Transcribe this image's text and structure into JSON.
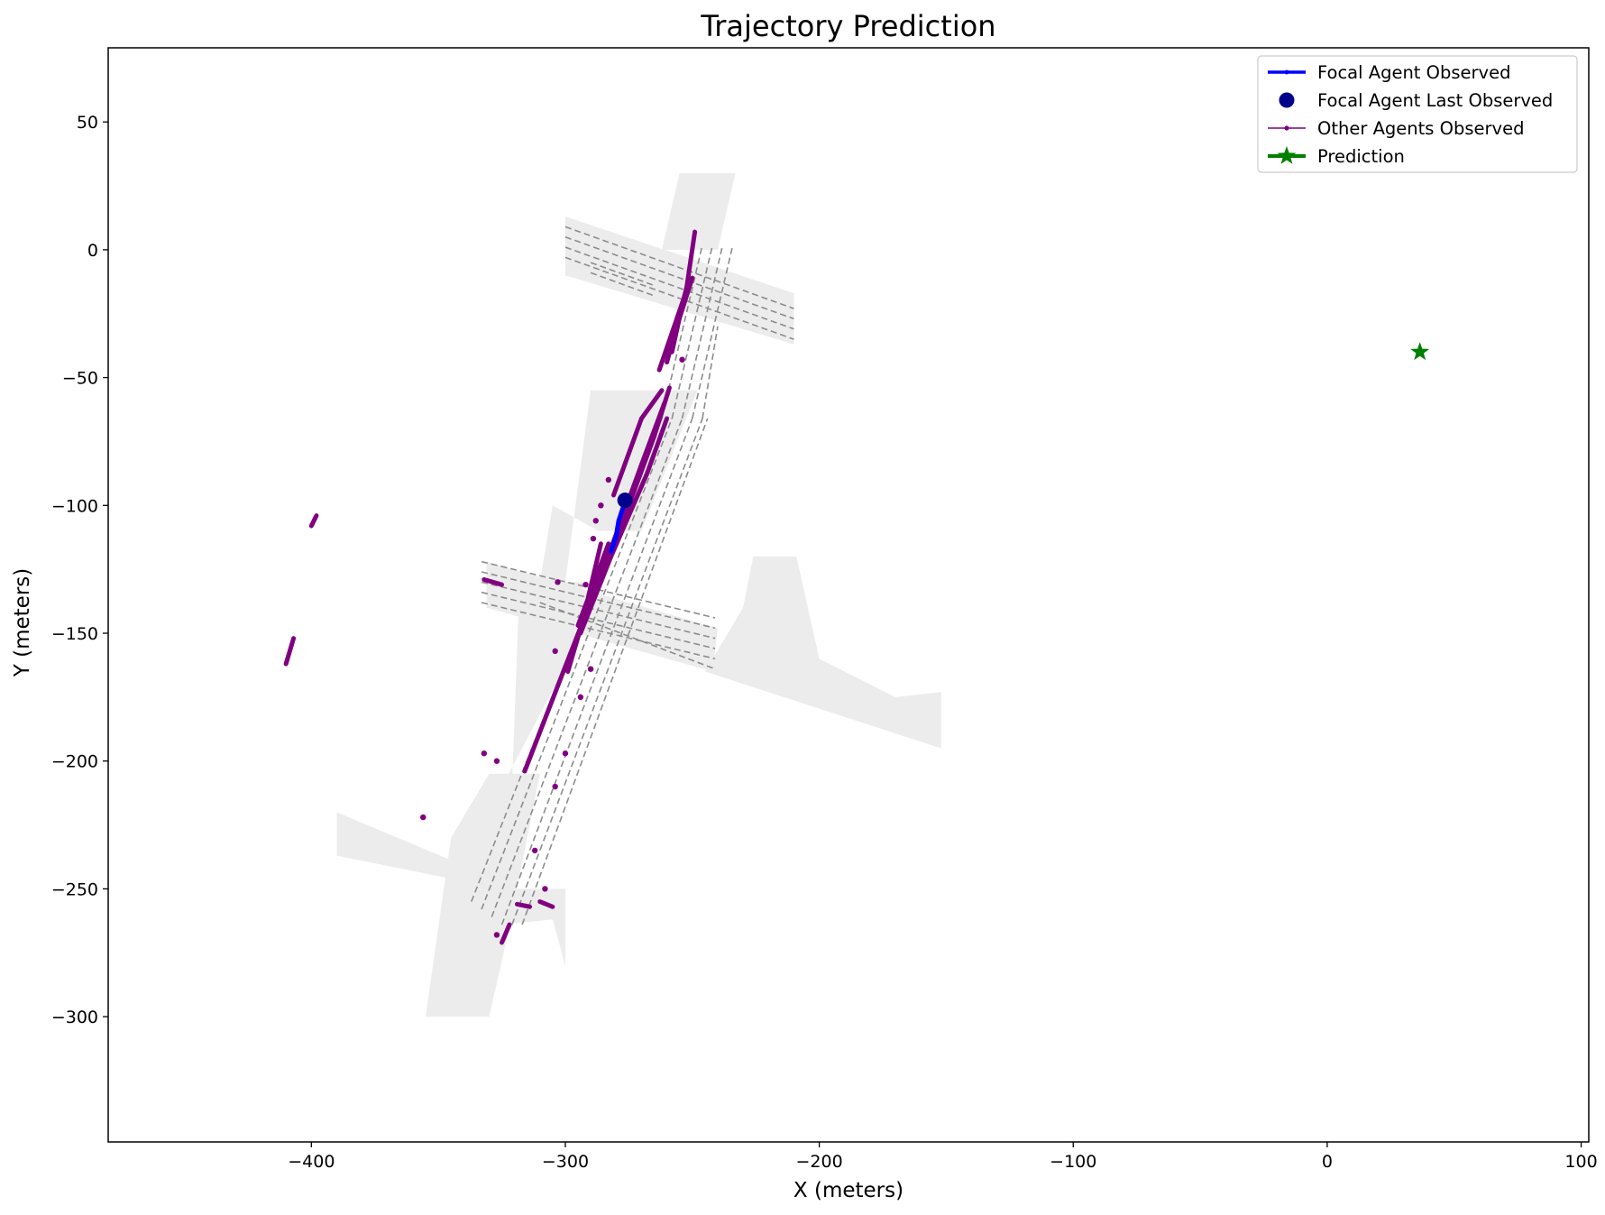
{
  "chart_data": {
    "type": "scatter",
    "title": "Trajectory Prediction",
    "xlabel": "X (meters)",
    "ylabel": "Y (meters)",
    "xlim": [
      -480,
      103
    ],
    "ylim": [
      -349,
      79
    ],
    "grid": false,
    "legend_position": "top-right",
    "x_ticks": [
      {
        "value": -400,
        "label": "−400"
      },
      {
        "value": -300,
        "label": "−300"
      },
      {
        "value": -200,
        "label": "−200"
      },
      {
        "value": -100,
        "label": "−100"
      },
      {
        "value": 0,
        "label": "0"
      },
      {
        "value": 100,
        "label": "100"
      }
    ],
    "y_ticks": [
      {
        "value": 50,
        "label": "50"
      },
      {
        "value": 0,
        "label": "0"
      },
      {
        "value": -50,
        "label": "−50"
      },
      {
        "value": -100,
        "label": "−100"
      },
      {
        "value": -150,
        "label": "−150"
      },
      {
        "value": -200,
        "label": "−200"
      },
      {
        "value": -250,
        "label": "−250"
      },
      {
        "value": -300,
        "label": "−300"
      }
    ],
    "colors": {
      "focal_observed": "#0000ff",
      "focal_last": "#00008b",
      "other_agents": "#800080",
      "prediction": "#008000",
      "map_area": "#ececec",
      "lane": "#8c8c8c"
    },
    "series": [
      {
        "name": "Focal Agent Observed",
        "style": "line",
        "x": [
          -282,
          -281,
          -280,
          -279.5,
          -279,
          -278,
          -277,
          -276.5
        ],
        "y": [
          -118,
          -115,
          -112,
          -109,
          -106,
          -103,
          -100,
          -98
        ]
      },
      {
        "name": "Focal Agent Last Observed",
        "style": "point",
        "x": [
          -276.5
        ],
        "y": [
          -98
        ]
      },
      {
        "name": "Other Agents Observed",
        "style": "tracks",
        "tracks": [
          {
            "x": [
              -316,
              -300
            ],
            "y": [
              -204,
              -163
            ]
          },
          {
            "x": [
              -300,
              -285
            ],
            "y": [
              -163,
              -125
            ]
          },
          {
            "x": [
              -285,
              -270
            ],
            "y": [
              -125,
              -84
            ]
          },
          {
            "x": [
              -270,
              -261
            ],
            "y": [
              -84,
              -60
            ]
          },
          {
            "x": [
              -294,
              -282
            ],
            "y": [
              -150,
              -120
            ]
          },
          {
            "x": [
              -282,
              -268
            ],
            "y": [
              -120,
              -88
            ]
          },
          {
            "x": [
              -268,
              -260
            ],
            "y": [
              -88,
              -66
            ]
          },
          {
            "x": [
              -286,
              -275
            ],
            "y": [
              -130,
              -100
            ]
          },
          {
            "x": [
              -275,
              -265
            ],
            "y": [
              -100,
              -73
            ]
          },
          {
            "x": [
              -265,
              -259
            ],
            "y": [
              -73,
              -54
            ]
          },
          {
            "x": [
              -295,
              -283
            ],
            "y": [
              -147,
              -115
            ]
          },
          {
            "x": [
              -281,
              -270
            ],
            "y": [
              -96,
              -66
            ]
          },
          {
            "x": [
              -270,
              -262
            ],
            "y": [
              -66,
              -55
            ]
          },
          {
            "x": [
              -263,
              -253
            ],
            "y": [
              -47,
              -18
            ]
          },
          {
            "x": [
              -260,
              -252
            ],
            "y": [
              -44,
              -14
            ]
          },
          {
            "x": [
              -258,
              -250
            ],
            "y": [
              -36,
              -11
            ]
          },
          {
            "x": [
              -253,
              -249
            ],
            "y": [
              -20,
              7
            ]
          },
          {
            "x": [
              -258,
              -254
            ],
            "y": [
              -40,
              -22
            ]
          },
          {
            "x": [
              -299,
              -288
            ],
            "y": [
              -165,
              -128
            ]
          },
          {
            "x": [
              -291,
              -286
            ],
            "y": [
              -136,
              -115
            ]
          },
          {
            "x": [
              -332,
              -325
            ],
            "y": [
              -129,
              -131
            ]
          },
          {
            "x": [
              -410,
              -407
            ],
            "y": [
              -162,
              -152
            ]
          },
          {
            "x": [
              -400,
              -398
            ],
            "y": [
              -108,
              -104
            ]
          },
          {
            "x": [
              -310,
              -305
            ],
            "y": [
              -255,
              -257
            ]
          },
          {
            "x": [
              -319,
              -314
            ],
            "y": [
              -256,
              -257
            ]
          },
          {
            "x": [
              -325,
              -322
            ],
            "y": [
              -271,
              -264
            ]
          }
        ],
        "points": [
          {
            "x": -289,
            "y": -113
          },
          {
            "x": -288,
            "y": -106
          },
          {
            "x": -286,
            "y": -100
          },
          {
            "x": -283,
            "y": -90
          },
          {
            "x": -294,
            "y": -175
          },
          {
            "x": -290,
            "y": -164
          },
          {
            "x": -304,
            "y": -157
          },
          {
            "x": -300,
            "y": -197
          },
          {
            "x": -304,
            "y": -210
          },
          {
            "x": -332,
            "y": -197
          },
          {
            "x": -327,
            "y": -200
          },
          {
            "x": -356,
            "y": -222
          },
          {
            "x": -312,
            "y": -235
          },
          {
            "x": -308,
            "y": -250
          },
          {
            "x": -327,
            "y": -268
          },
          {
            "x": -303,
            "y": -130
          },
          {
            "x": -292,
            "y": -131
          },
          {
            "x": -254,
            "y": -43
          }
        ]
      },
      {
        "name": "Prediction",
        "style": "star",
        "x": [
          36.5
        ],
        "y": [
          -40
        ]
      }
    ],
    "map": {
      "drivable_areas": [
        [
          [
            -300,
            13
          ],
          [
            -210,
            -17
          ],
          [
            -210,
            -37
          ],
          [
            -300,
            -10
          ]
        ],
        [
          [
            -262,
            0
          ],
          [
            -255,
            30
          ],
          [
            -233,
            30
          ],
          [
            -240,
            0
          ]
        ],
        [
          [
            -290,
            -55
          ],
          [
            -248,
            -55
          ],
          [
            -270,
            -110
          ],
          [
            -287,
            -110
          ],
          [
            -305,
            -100
          ],
          [
            -310,
            -130
          ],
          [
            -300,
            -130
          ]
        ],
        [
          [
            -331,
            -122
          ],
          [
            -240,
            -148
          ],
          [
            -242,
            -165
          ],
          [
            -331,
            -140
          ]
        ],
        [
          [
            -226,
            -120
          ],
          [
            -209,
            -120
          ],
          [
            -200,
            -160
          ],
          [
            -170,
            -175
          ],
          [
            -152,
            -173
          ],
          [
            -152,
            -195
          ],
          [
            -245,
            -165
          ],
          [
            -230,
            -140
          ]
        ],
        [
          [
            -318,
            -130
          ],
          [
            -293,
            -130
          ],
          [
            -293,
            -150
          ],
          [
            -325,
            -210
          ],
          [
            -335,
            -225
          ],
          [
            -321,
            -210
          ]
        ],
        [
          [
            -390,
            -220
          ],
          [
            -335,
            -243
          ],
          [
            -335,
            -265
          ],
          [
            -305,
            -262
          ],
          [
            -300,
            -280
          ],
          [
            -300,
            -250
          ],
          [
            -325,
            -250
          ],
          [
            -390,
            -237
          ]
        ],
        [
          [
            -345,
            -230
          ],
          [
            -330,
            -205
          ],
          [
            -310,
            -205
          ],
          [
            -322,
            -265
          ],
          [
            -330,
            -300
          ],
          [
            -355,
            -300
          ]
        ]
      ],
      "lanes": [
        {
          "x": [
            -300,
            -210
          ],
          "y": [
            9,
            -23
          ]
        },
        {
          "x": [
            -300,
            -210
          ],
          "y": [
            5,
            -27
          ]
        },
        {
          "x": [
            -300,
            -210
          ],
          "y": [
            1,
            -31
          ]
        },
        {
          "x": [
            -300,
            -210
          ],
          "y": [
            -3,
            -35
          ]
        },
        {
          "x": [
            -290,
            -265
          ],
          "y": [
            -5,
            -14
          ]
        },
        {
          "x": [
            -290,
            -265
          ],
          "y": [
            -9,
            -18
          ]
        },
        {
          "x": [
            -333,
            -241
          ],
          "y": [
            -122,
            -144
          ]
        },
        {
          "x": [
            -333,
            -241
          ],
          "y": [
            -126,
            -148
          ]
        },
        {
          "x": [
            -333,
            -241
          ],
          "y": [
            -130,
            -152
          ]
        },
        {
          "x": [
            -333,
            -241
          ],
          "y": [
            -134,
            -156
          ]
        },
        {
          "x": [
            -333,
            -241
          ],
          "y": [
            -138,
            -160
          ]
        },
        {
          "x": [
            -310,
            -241
          ],
          "y": [
            -138,
            -164
          ]
        },
        {
          "x": [
            -337,
            -262
          ],
          "y": [
            -255,
            -66
          ]
        },
        {
          "x": [
            -333,
            -258
          ],
          "y": [
            -258,
            -66
          ]
        },
        {
          "x": [
            -329,
            -254
          ],
          "y": [
            -261,
            -66
          ]
        },
        {
          "x": [
            -325,
            -250
          ],
          "y": [
            -264,
            -66
          ]
        },
        {
          "x": [
            -321,
            -246
          ],
          "y": [
            -264,
            -66
          ]
        },
        {
          "x": [
            -317,
            -244
          ],
          "y": [
            -264,
            -66
          ]
        },
        {
          "x": [
            -262,
            -246
          ],
          "y": [
            -66,
            2
          ]
        },
        {
          "x": [
            -258,
            -242
          ],
          "y": [
            -66,
            2
          ]
        },
        {
          "x": [
            -254,
            -238
          ],
          "y": [
            -66,
            2
          ]
        },
        {
          "x": [
            -250,
            -234
          ],
          "y": [
            -66,
            2
          ]
        },
        {
          "x": [
            -246,
            -240
          ],
          "y": [
            -66,
            -30
          ]
        }
      ]
    }
  }
}
